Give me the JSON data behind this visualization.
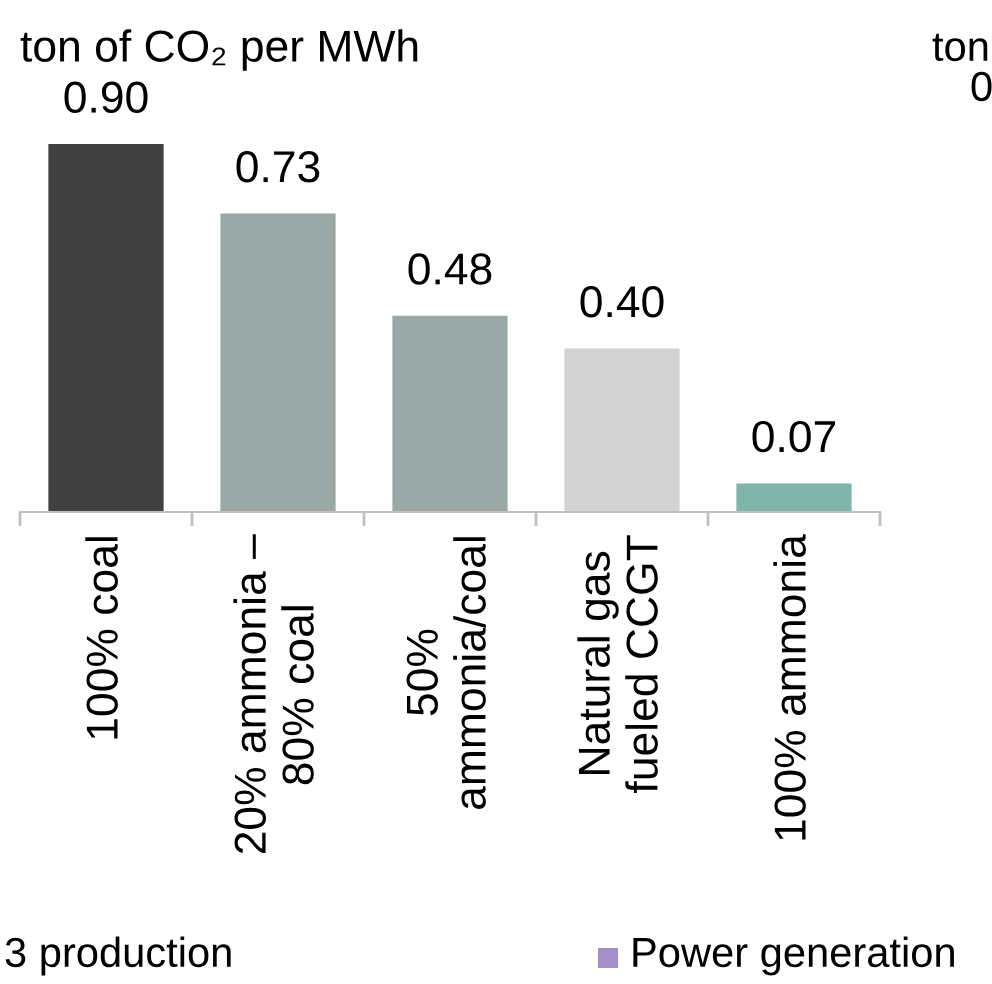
{
  "chart_data": {
    "type": "bar",
    "title": "ton of CO₂ per MWh",
    "categories": [
      "100% coal",
      "20% ammonia –\n80% coal",
      "50%\nammonia/coal",
      "Natural gas\nfueled CCGT",
      "100% ammonia"
    ],
    "values": [
      0.9,
      0.73,
      0.48,
      0.4,
      0.07
    ],
    "value_labels": [
      "0.90",
      "0.73",
      "0.48",
      "0.40",
      "0.07"
    ],
    "colors": [
      "#404040",
      "#9aa8a5",
      "#9aa8a5",
      "#d3d3d3",
      "#7fb5ab"
    ],
    "ylim": [
      0,
      0.9
    ],
    "tick_labels": "x",
    "grid": false,
    "legend": false,
    "annotations": [
      "ton",
      "0",
      "3 production",
      "Power generation"
    ]
  }
}
